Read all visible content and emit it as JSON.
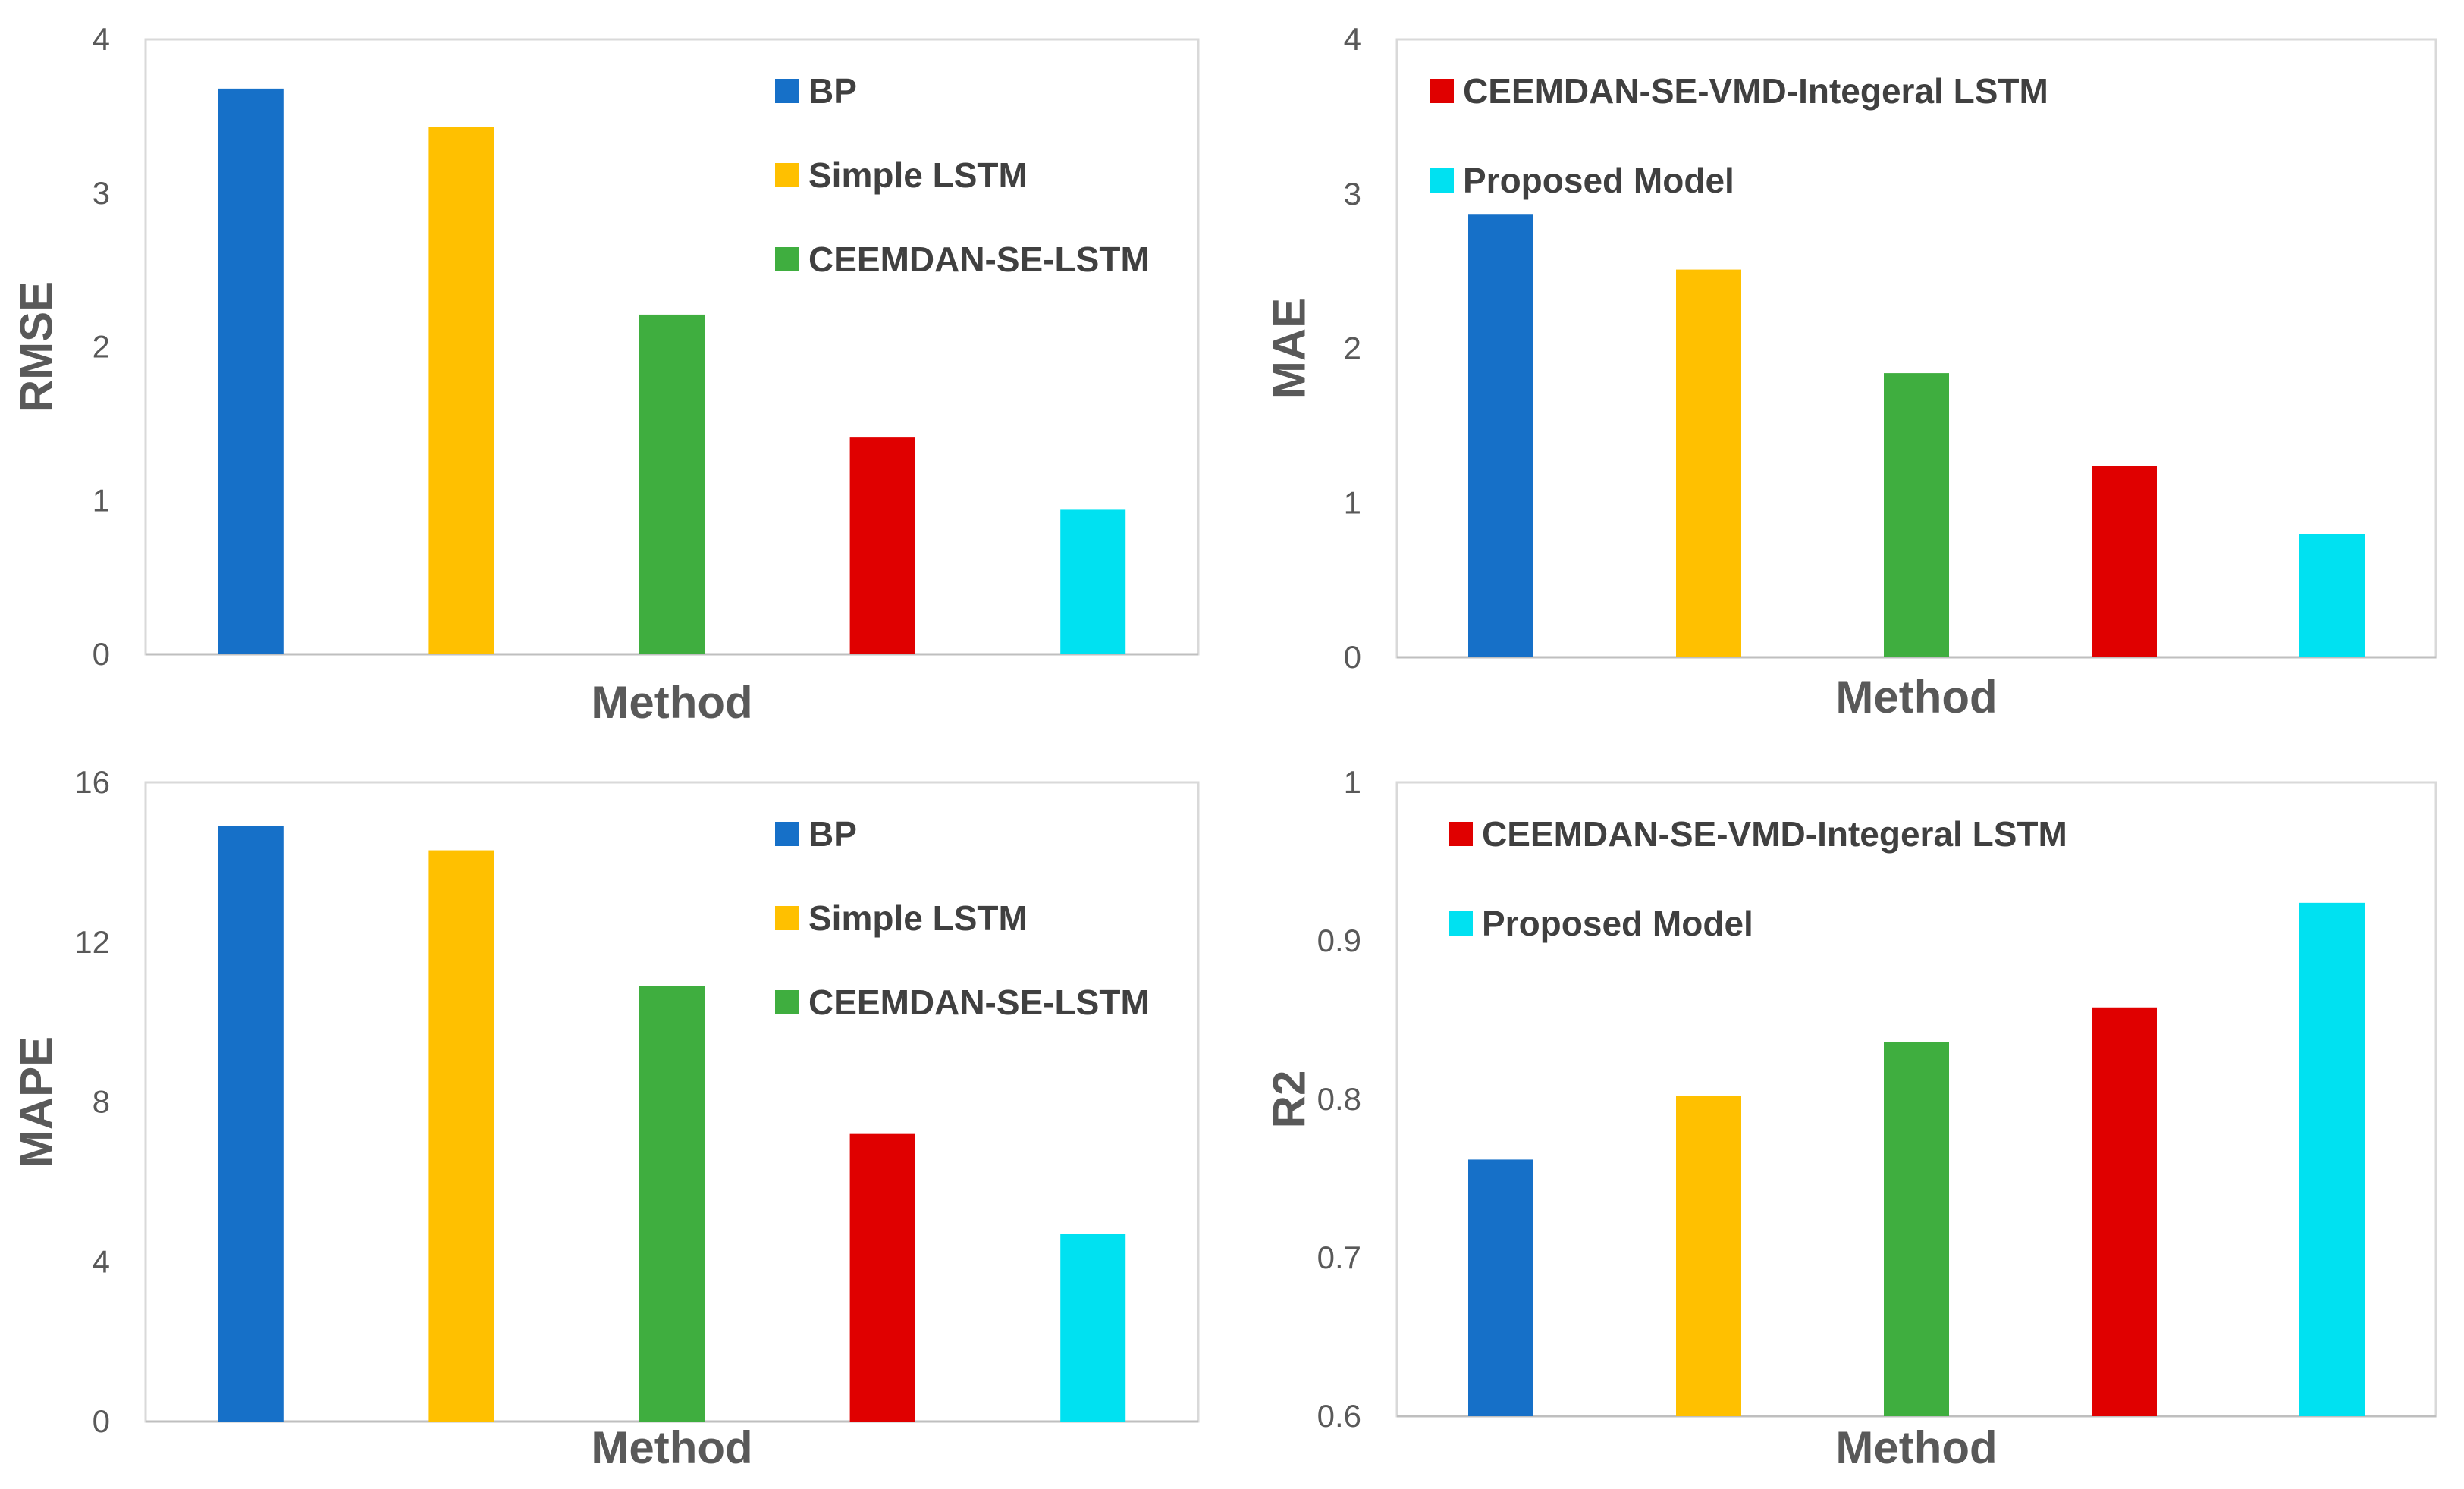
{
  "chart_data": [
    {
      "type": "bar",
      "categories": [
        "BP",
        "Simple LSTM",
        "CEEMDAN-SE-LSTM",
        "CEEMDAN-SE-VMD-Integeral LSTM",
        "Proposed Model"
      ],
      "values": [
        3.68,
        3.43,
        2.21,
        1.41,
        0.94
      ],
      "xlabel": "Method",
      "ylabel": "RMSE",
      "ylim": [
        0,
        4
      ],
      "yticks": [
        "0",
        "1",
        "2",
        "3",
        "4"
      ],
      "legend": [
        "BP",
        "Simple LSTM",
        "CEEMDAN-SE-LSTM"
      ],
      "legend_position": "top-right"
    },
    {
      "type": "bar",
      "categories": [
        "BP",
        "Simple LSTM",
        "CEEMDAN-SE-LSTM",
        "CEEMDAN-SE-VMD-Integeral LSTM",
        "Proposed Model"
      ],
      "values": [
        2.87,
        2.51,
        1.84,
        1.24,
        0.8
      ],
      "xlabel": "Method",
      "ylabel": "MAE",
      "ylim": [
        0,
        4
      ],
      "yticks": [
        "0",
        "1",
        "2",
        "3",
        "4"
      ],
      "legend": [
        "CEEMDAN-SE-VMD-Integeral LSTM",
        "Proposed Model"
      ],
      "legend_position": "top-left"
    },
    {
      "type": "bar",
      "categories": [
        "BP",
        "Simple LSTM",
        "CEEMDAN-SE-LSTM",
        "CEEMDAN-SE-VMD-Integeral LSTM",
        "Proposed Model"
      ],
      "values": [
        14.9,
        14.3,
        10.9,
        7.2,
        4.7
      ],
      "xlabel": "Method",
      "ylabel": "MAPE",
      "ylim": [
        0,
        16
      ],
      "yticks": [
        "0",
        "4",
        "8",
        "12",
        "16"
      ],
      "legend": [
        "BP",
        "Simple LSTM",
        "CEEMDAN-SE-LSTM"
      ],
      "legend_position": "top-right"
    },
    {
      "type": "bar",
      "categories": [
        "BP",
        "Simple LSTM",
        "CEEMDAN-SE-LSTM",
        "CEEMDAN-SE-VMD-Integeral LSTM",
        "Proposed Model"
      ],
      "values": [
        0.762,
        0.802,
        0.836,
        0.858,
        0.924
      ],
      "xlabel": "Method",
      "ylabel": "R2",
      "ylim": [
        0.6,
        1
      ],
      "yticks": [
        "0.6",
        "0.7",
        "0.8",
        "0.9",
        "1"
      ],
      "legend": [
        "CEEMDAN-SE-VMD-Integeral LSTM",
        "Proposed Model"
      ],
      "legend_position": "top-left"
    }
  ],
  "series_colors": {
    "BP": "#1670C8",
    "Simple LSTM": "#FFC000",
    "CEEMDAN-SE-LSTM": "#3FAE3F",
    "CEEMDAN-SE-VMD-Integeral LSTM": "#E00000",
    "Proposed Model": "#00E1F1"
  }
}
